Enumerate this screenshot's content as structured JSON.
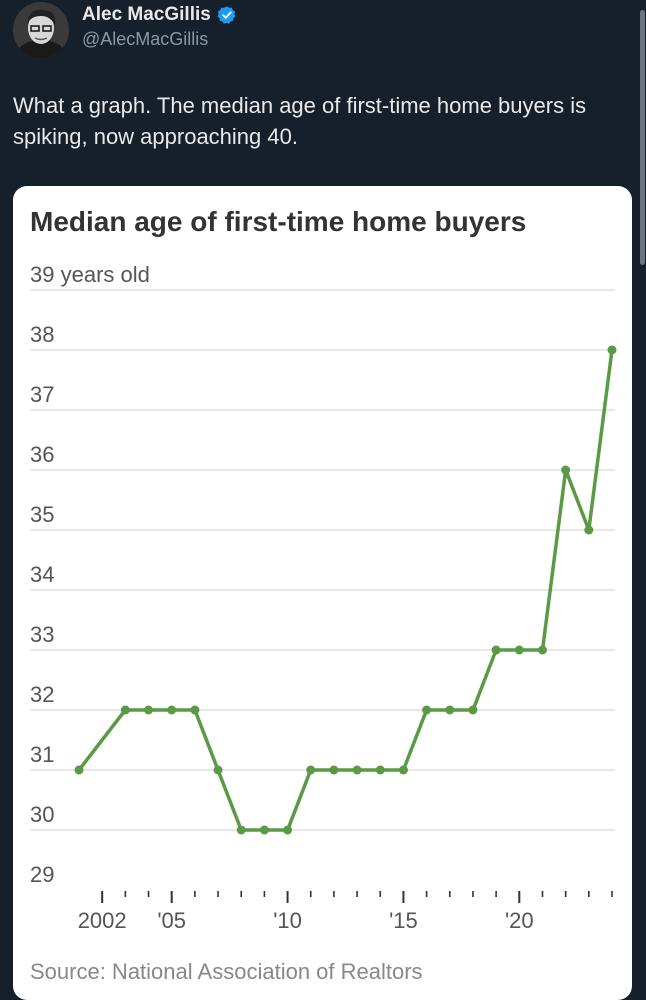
{
  "tweet": {
    "display_name": "Alec MacGillis",
    "handle": "@AlecMacGillis",
    "text": "What a graph. The median age of first-time home buyers is spiking, now approaching 40."
  },
  "colors": {
    "background": "#15202b",
    "line": "#5b9a45",
    "verified": "#1d9bf0"
  },
  "chart_data": {
    "type": "line",
    "title": "Median age of first-time home buyers",
    "unit_label": "years old",
    "source": "Source: National Association of Realtors",
    "x": [
      2001,
      2003,
      2004,
      2005,
      2006,
      2007,
      2008,
      2009,
      2010,
      2011,
      2012,
      2013,
      2014,
      2015,
      2016,
      2017,
      2018,
      2019,
      2020,
      2021,
      2022,
      2023,
      2024
    ],
    "values": [
      31,
      32,
      32,
      32,
      32,
      31,
      30,
      30,
      30,
      31,
      31,
      31,
      31,
      31,
      32,
      32,
      32,
      33,
      33,
      33,
      36,
      35,
      38
    ],
    "ylim": [
      29,
      39
    ],
    "y_ticks": [
      {
        "value": 39,
        "label": "39"
      },
      {
        "value": 38,
        "label": "38"
      },
      {
        "value": 37,
        "label": "37"
      },
      {
        "value": 36,
        "label": "36"
      },
      {
        "value": 35,
        "label": "35"
      },
      {
        "value": 34,
        "label": "34"
      },
      {
        "value": 33,
        "label": "33"
      },
      {
        "value": 32,
        "label": "32"
      },
      {
        "value": 31,
        "label": "31"
      },
      {
        "value": 30,
        "label": "30"
      },
      {
        "value": 29,
        "label": "29"
      }
    ],
    "xlim": [
      2001,
      2024
    ],
    "x_ticks": [
      {
        "value": 2002,
        "label": "2002"
      },
      {
        "value": 2005,
        "label": "'05"
      },
      {
        "value": 2010,
        "label": "'10"
      },
      {
        "value": 2015,
        "label": "'15"
      },
      {
        "value": 2020,
        "label": "'20"
      }
    ],
    "grid": true
  }
}
